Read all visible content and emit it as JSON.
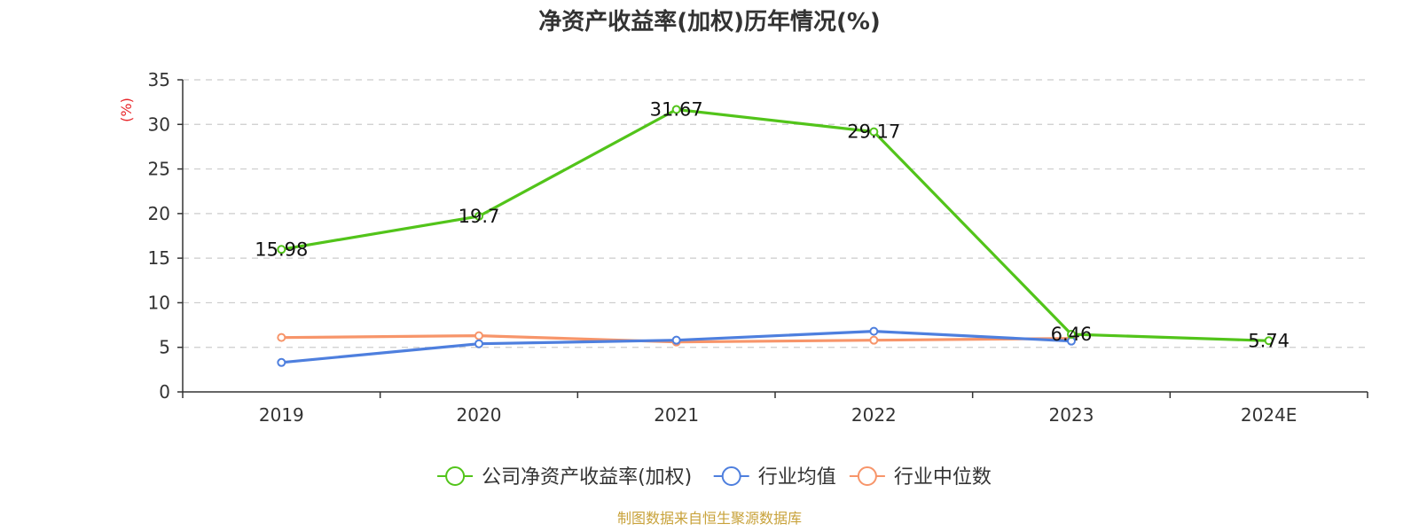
{
  "chart_data": {
    "type": "line",
    "title": "净资产收益率(加权)历年情况(%)",
    "ylabel": "(%)",
    "ylim": [
      0,
      35
    ],
    "yticks": [
      0,
      5,
      10,
      15,
      20,
      25,
      30,
      35
    ],
    "categories": [
      "2019",
      "2020",
      "2021",
      "2022",
      "2023",
      "2024E"
    ],
    "grid": true,
    "legend_position": "bottom-center",
    "series": [
      {
        "name": "公司净资产收益率(加权)",
        "color": "#52c41a",
        "values": [
          15.98,
          19.7,
          31.67,
          29.17,
          6.46,
          5.74
        ],
        "labels": [
          "15.98",
          "19.7",
          "31.67",
          "29.17",
          "6.46",
          "5.74"
        ]
      },
      {
        "name": "行业均值",
        "color": "#4e7fde",
        "values": [
          3.3,
          5.4,
          5.8,
          6.8,
          5.7,
          null
        ]
      },
      {
        "name": "行业中位数",
        "color": "#f7956a",
        "values": [
          6.1,
          6.3,
          5.6,
          5.8,
          6.0,
          null
        ]
      }
    ]
  },
  "source": {
    "text": "制图数据来自恒生聚源数据库",
    "color": "#c8a23a"
  },
  "unit_color": "#e8262a"
}
